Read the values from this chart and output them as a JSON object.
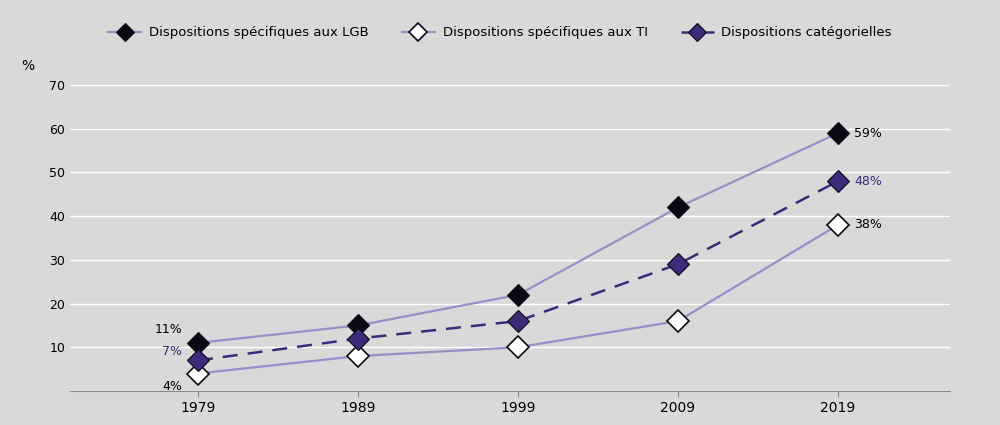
{
  "years": [
    1979,
    1989,
    1999,
    2009,
    2019
  ],
  "lgb": [
    11,
    15,
    22,
    42,
    59
  ],
  "ti": [
    4,
    8,
    10,
    16,
    38
  ],
  "cat": [
    7,
    12,
    16,
    29,
    48
  ],
  "lgb_color": "#1a1a2e",
  "lgb_line_color": "#9b8dc8",
  "ti_color": "#9b8dc8",
  "cat_color": "#3d2b7a",
  "cat_line_color": "#3d2b7a",
  "ylabel": "%",
  "ylim": [
    0,
    70
  ],
  "yticks": [
    0,
    10,
    20,
    30,
    40,
    50,
    60,
    70
  ],
  "legend_labels": [
    "Dispositions spécifiques aux LGB",
    "Dispositions spécifiques aux TI",
    "Dispositions catégorielles"
  ],
  "bg_color": "#d9d9d9",
  "plot_bg": "#d9d9d9",
  "legend_bg": "#e8e8e8"
}
